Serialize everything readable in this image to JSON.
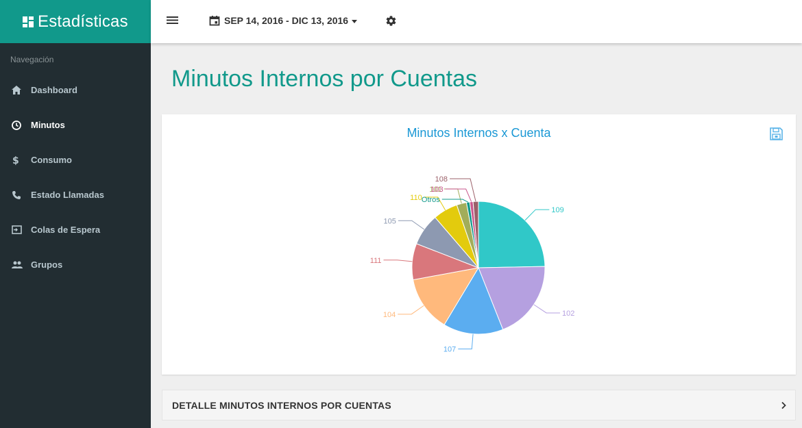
{
  "app": {
    "title": "Estadísticas"
  },
  "sidebar": {
    "header": "Navegación",
    "items": [
      {
        "label": "Dashboard",
        "icon": "home-icon",
        "active": false
      },
      {
        "label": "Minutos",
        "icon": "clock-icon",
        "active": true
      },
      {
        "label": "Consumo",
        "icon": "dollar-icon",
        "active": false
      },
      {
        "label": "Estado Llamadas",
        "icon": "phone-icon",
        "active": false
      },
      {
        "label": "Colas de Espera",
        "icon": "queue-icon",
        "active": false
      },
      {
        "label": "Grupos",
        "icon": "group-icon",
        "active": false
      }
    ]
  },
  "topbar": {
    "date_range": "SEP 14, 2016 - DIC 13, 2016"
  },
  "page": {
    "title": "Minutos Internos por Cuentas"
  },
  "chart_data": {
    "type": "pie",
    "title": "Minutos Internos x Cuenta",
    "slices": [
      {
        "label": "109",
        "value": 24.7,
        "color": "#30c8c8"
      },
      {
        "label": "102",
        "value": 19.3,
        "color": "#b5a0e0"
      },
      {
        "label": "107",
        "value": 14.6,
        "color": "#5badf0"
      },
      {
        "label": "104",
        "value": 13.5,
        "color": "#ffb97c"
      },
      {
        "label": "111",
        "value": 8.8,
        "color": "#d9777c"
      },
      {
        "label": "105",
        "value": 7.8,
        "color": "#8d99b1"
      },
      {
        "label": "110",
        "value": 6.0,
        "color": "#e3cb0d"
      },
      {
        "label": "101",
        "value": 2.4,
        "color": "#a2ad5a"
      },
      {
        "label": "Otros",
        "value": 0.8,
        "color": "#11998b"
      },
      {
        "label": "103",
        "value": 0.8,
        "color": "#c9578c"
      },
      {
        "label": "108",
        "value": 1.3,
        "color": "#9b6069"
      }
    ]
  },
  "detail": {
    "label": "DETALLE MINUTOS INTERNOS POR CUENTAS"
  },
  "colors": {
    "accent": "#11998b",
    "sidebar_bg": "#222d32",
    "chart_title": "#1a98d5"
  }
}
